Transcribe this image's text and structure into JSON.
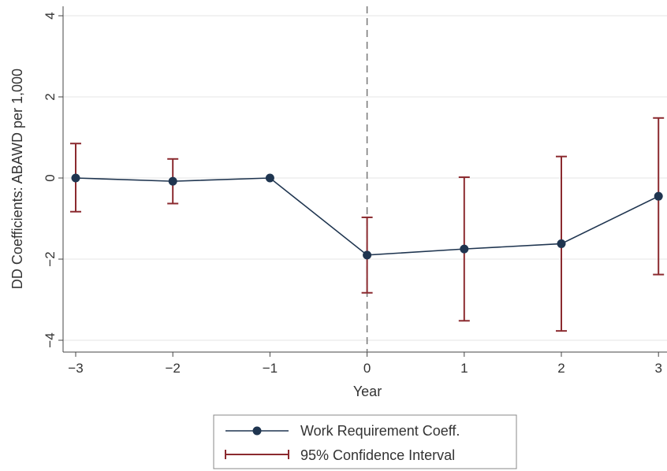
{
  "chart_data": {
    "type": "line",
    "xlabel": "Year",
    "ylabel": "DD Coefficients: ABAWD per 1,000",
    "xlim": [
      -3,
      3
    ],
    "ylim": [
      -4,
      4
    ],
    "x_ticks": [
      "−3",
      "−2",
      "−1",
      "0",
      "1",
      "2",
      "3"
    ],
    "y_ticks": [
      "−4",
      "−2",
      "0",
      "2",
      "4"
    ],
    "grid": true,
    "reference_line_x": 0,
    "legend_position": "bottom-center",
    "x": [
      -3,
      -2,
      -1,
      0,
      1,
      2,
      3
    ],
    "series": [
      {
        "name": "Work Requirement Coeff.",
        "color": "#1f3550",
        "values": [
          0.0,
          -0.08,
          0.0,
          -1.9,
          -1.75,
          -1.62,
          -0.45
        ]
      },
      {
        "name": "95% Confidence Interval",
        "color": "#8b2a2f",
        "lower": [
          -0.83,
          -0.63,
          null,
          -2.83,
          -3.52,
          -3.77,
          -2.38
        ],
        "upper": [
          0.85,
          0.47,
          null,
          -0.97,
          0.02,
          0.53,
          1.48
        ]
      }
    ]
  }
}
